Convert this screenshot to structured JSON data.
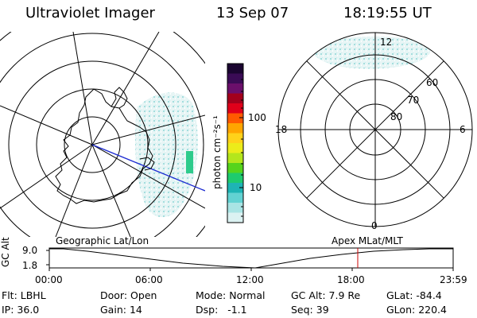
{
  "header": {
    "instrument": "Ultraviolet Imager",
    "date": "13 Sep 07",
    "time": "18:19:55 UT"
  },
  "colorbar": {
    "unit_label": "photon cm⁻²s⁻¹",
    "ticks": [
      "100",
      "10"
    ],
    "colors": [
      "#1a0530",
      "#3a0b55",
      "#6b0f6b",
      "#a3001c",
      "#e0001a",
      "#ff5a00",
      "#ffa500",
      "#ffd21a",
      "#ecec1a",
      "#b4e61c",
      "#55d41c",
      "#1ecb6e",
      "#1eb4b4",
      "#62d2d2",
      "#a8e4e4",
      "#dbf2f2"
    ]
  },
  "polar_plot": {
    "lat_labels": [
      "60",
      "70",
      "80"
    ],
    "mlt_labels": [
      "12",
      "18",
      "6",
      "0"
    ]
  },
  "timeline": {
    "left_title": "Geographic Lat/Lon",
    "right_title": "Apex MLat/MLT",
    "axis_label": "GC Alt",
    "y_ticks": [
      "9.0",
      "1.8"
    ],
    "x_ticks": [
      "00:00",
      "06:00",
      "12:00",
      "18:00",
      "23:59"
    ],
    "marker_time_hours": 18.33,
    "marker_color": "#cc0000"
  },
  "status": {
    "row1": [
      {
        "label": "Flt:",
        "value": "LBHL"
      },
      {
        "label": "Door:",
        "value": "Open"
      },
      {
        "label": "Mode:",
        "value": "Normal"
      },
      {
        "label": "GC Alt:",
        "value": "7.9 Re"
      },
      {
        "label": "GLat:",
        "value": "-84.4"
      }
    ],
    "row2": [
      {
        "label": "IP:",
        "value": "36.0"
      },
      {
        "label": "Gain:",
        "value": "14"
      },
      {
        "label": "Dsp:",
        "value": "-1.1"
      },
      {
        "label": "Seq:",
        "value": "39"
      },
      {
        "label": "GLon:",
        "value": "220.4"
      }
    ]
  }
}
